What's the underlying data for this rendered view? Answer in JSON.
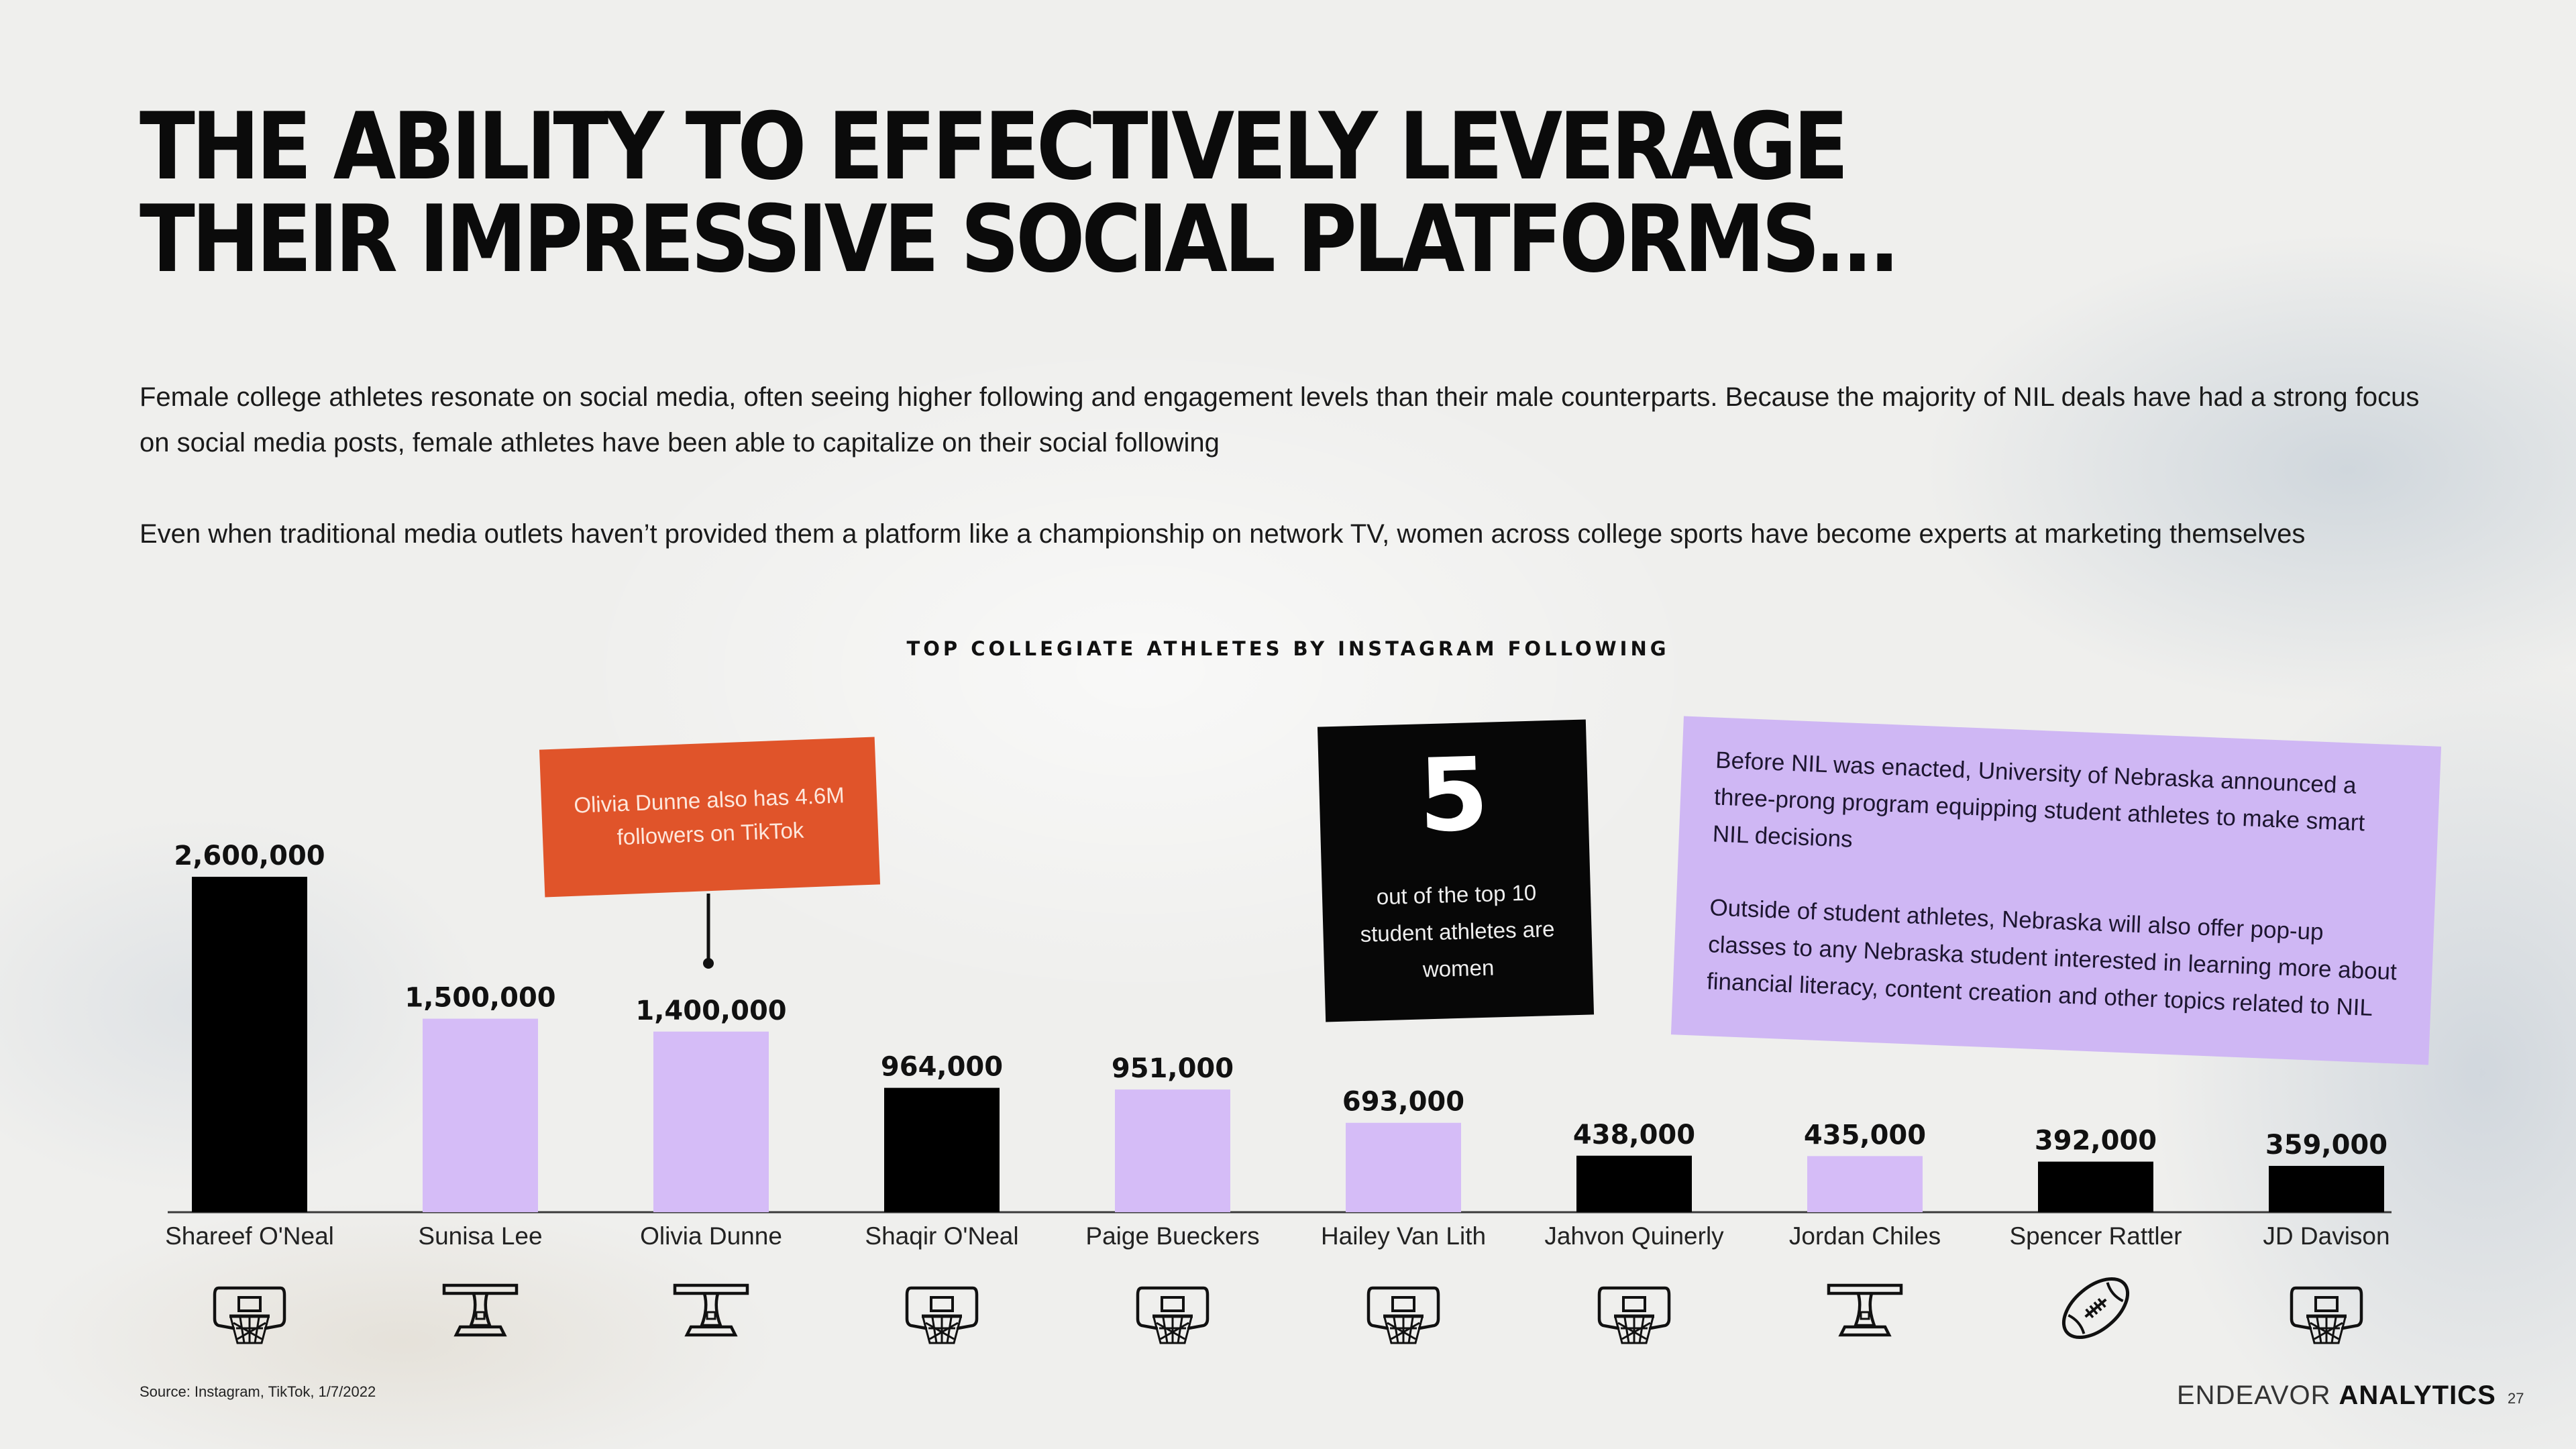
{
  "heading": {
    "title": "THE ABILITY TO EFFECTIVELY LEVERAGE THEIR IMPRESSIVE SOCIAL PLATFORMS…",
    "paragraph_1": "Female college athletes resonate on social media, often seeing higher following and engagement levels than their male counterparts.  Because the majority of NIL deals have had a strong focus on social media posts, female athletes have been able to capitalize on their social following",
    "paragraph_2": "Even when traditional media outlets haven’t provided them a platform like a championship on network TV, women across college sports have become experts at marketing themselves"
  },
  "chart_data": {
    "type": "bar",
    "title": "TOP COLLEGIATE ATHLETES BY INSTAGRAM FOLLOWING",
    "categories": [
      "Shareef O'Neal",
      "Sunisa Lee",
      "Olivia Dunne",
      "Shaqir O'Neal",
      "Paige Bueckers",
      "Hailey Van Lith",
      "Jahvon Quinerly",
      "Jordan Chiles",
      "Spencer Rattler",
      "JD Davison"
    ],
    "values": [
      2600000,
      1500000,
      1400000,
      964000,
      951000,
      693000,
      438000,
      435000,
      392000,
      359000
    ],
    "value_labels": [
      "2,600,000",
      "1,500,000",
      "1,400,000",
      "964,000",
      "951,000",
      "693,000",
      "438,000",
      "435,000",
      "392,000",
      "359,000"
    ],
    "sport_icons": [
      "basketball-hoop-icon",
      "gymnastics-beam-icon",
      "gymnastics-beam-icon",
      "basketball-hoop-icon",
      "basketball-hoop-icon",
      "basketball-hoop-icon",
      "basketball-hoop-icon",
      "gymnastics-beam-icon",
      "football-icon",
      "basketball-hoop-icon"
    ],
    "gender": [
      "male",
      "female",
      "female",
      "male",
      "female",
      "female",
      "male",
      "female",
      "male",
      "male"
    ],
    "colors": {
      "male": "#000000",
      "female": "#d5bcf7"
    },
    "ylim": [
      0,
      2600000
    ],
    "xlabel": "",
    "ylabel": "",
    "grid": false,
    "legend": "none"
  },
  "callouts": {
    "tiktok_note": "Olivia Dunne also has 4.6M followers on TikTok",
    "stat_number": "5",
    "stat_text": "out of the top 10 student athletes are women",
    "nebraska_p1": "Before NIL was enacted, University of Nebraska announced a three-prong program equipping student athletes to make smart NIL decisions",
    "nebraska_p2": "Outside of student athletes, Nebraska will also offer pop-up classes to any Nebraska student interested in learning more about financial literacy, content creation and other topics related to NIL"
  },
  "footer": {
    "source": "Source: Instagram, TikTok, 1/7/2022",
    "brand_light": "ENDEAVOR",
    "brand_bold": "ANALYTICS",
    "page_number": "27"
  }
}
